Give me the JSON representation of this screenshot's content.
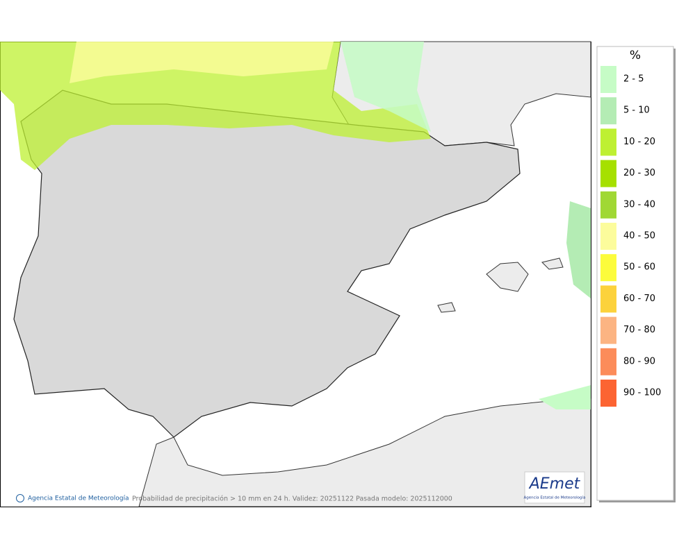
{
  "legend": {
    "title": "%",
    "items": [
      {
        "label": "2 - 5",
        "color": "#c6fcc6"
      },
      {
        "label": "5 - 10",
        "color": "#b4ecb4"
      },
      {
        "label": "10 - 20",
        "color": "#bef032"
      },
      {
        "label": "20 - 30",
        "color": "#a6e000"
      },
      {
        "label": "30 - 40",
        "color": "#a0d834"
      },
      {
        "label": "40 - 50",
        "color": "#fcfc9c"
      },
      {
        "label": "50 - 60",
        "color": "#fcfc3c"
      },
      {
        "label": "60 - 70",
        "color": "#fcd23c"
      },
      {
        "label": "70 - 80",
        "color": "#fcb482"
      },
      {
        "label": "80 - 90",
        "color": "#fc8c5a"
      },
      {
        "label": "90 - 100",
        "color": "#fc6432"
      }
    ]
  },
  "footer": {
    "credit": "Agencia Estatal de Meteorología",
    "caption": "Probabilidad de precipitación > 10 mm en 24 h. Validez: 20251122 Pasada modelo: 2025112000"
  },
  "logo": {
    "name": "AEmet",
    "subtitle": "Agencia Estatal de Meteorología"
  }
}
